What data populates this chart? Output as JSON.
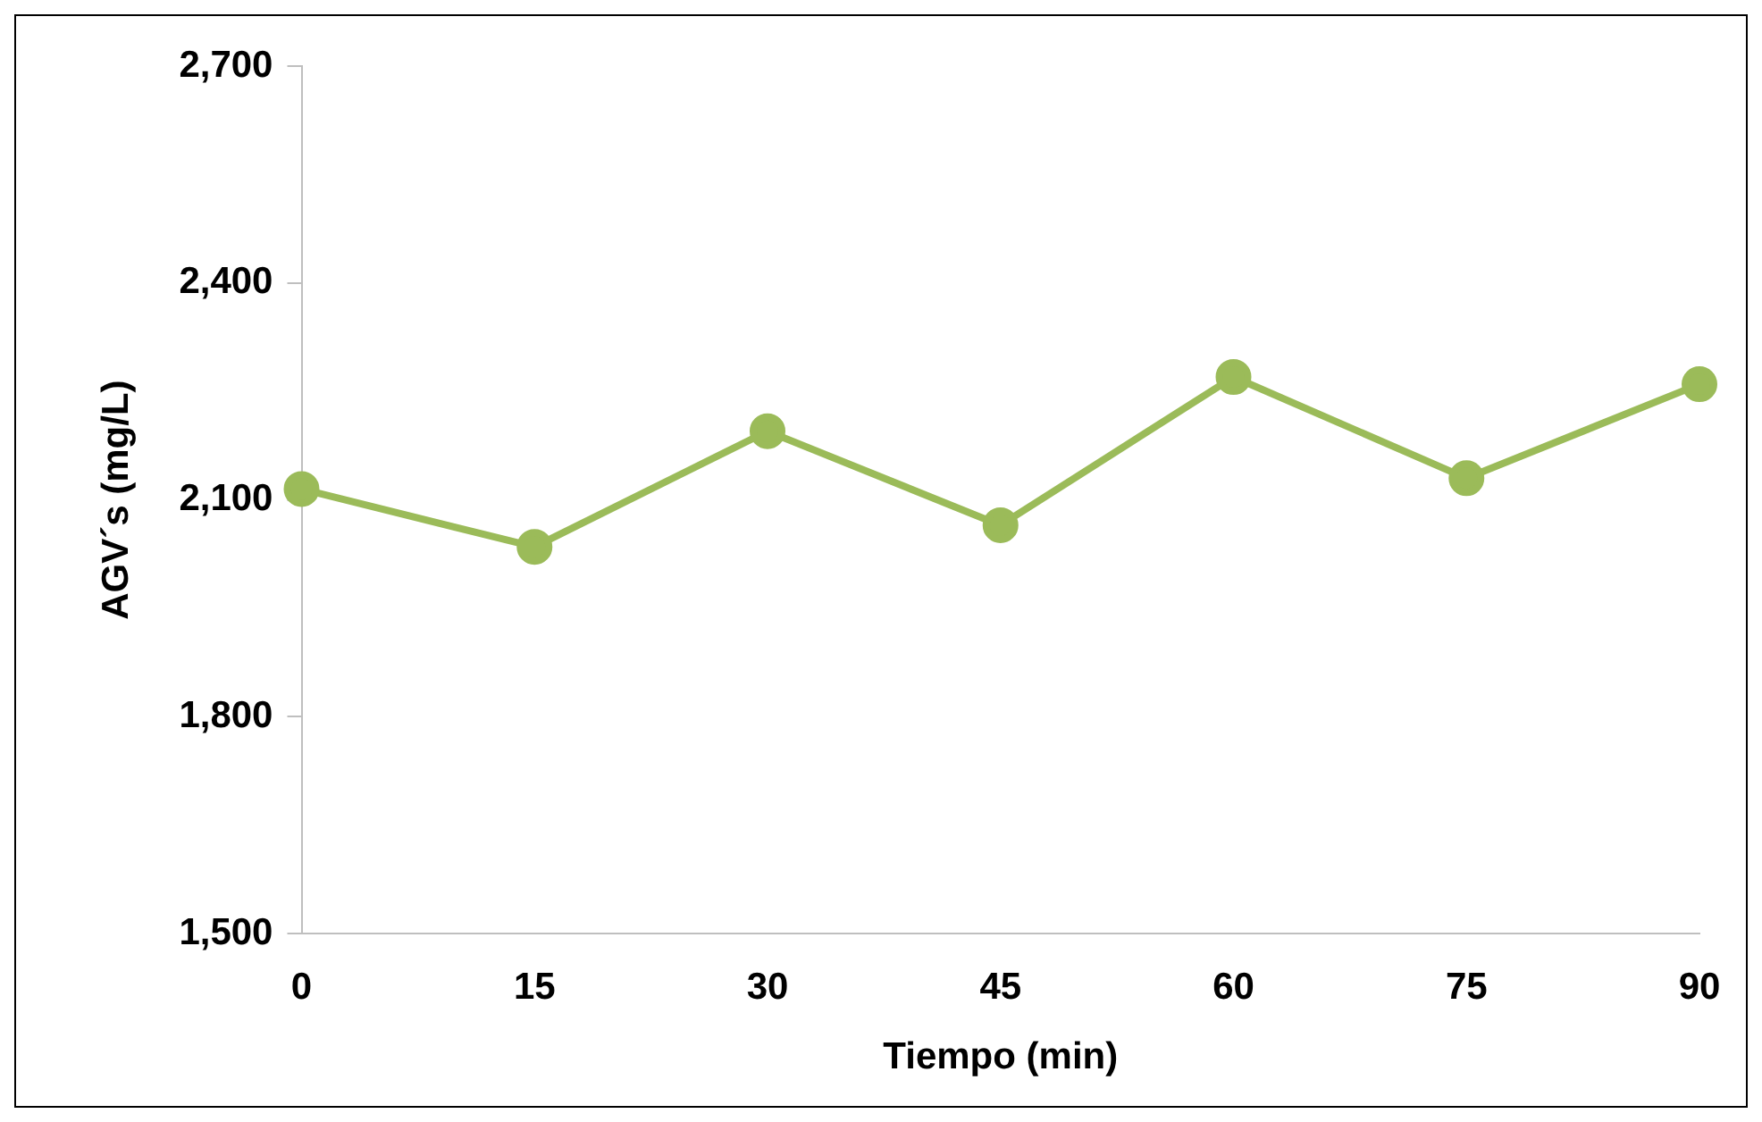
{
  "chart_data": {
    "type": "line",
    "xlabel": "Tiempo (min)",
    "ylabel": "AGV´s (mg/L)",
    "x": [
      0,
      15,
      30,
      45,
      60,
      75,
      90
    ],
    "series": [
      {
        "color": "#9bbb59",
        "values": [
          2115,
          2035,
          2195,
          2065,
          2270,
          2130,
          2260
        ]
      }
    ],
    "xlim": [
      0,
      90
    ],
    "xticks": [
      0,
      15,
      30,
      45,
      60,
      75,
      90
    ],
    "ylim": [
      1500,
      2700
    ],
    "yticks": [
      {
        "value": 1500,
        "label": "1,500"
      },
      {
        "value": 1800,
        "label": "1,800"
      },
      {
        "value": 2100,
        "label": "2,100"
      },
      {
        "value": 2400,
        "label": "2,400"
      },
      {
        "value": 2700,
        "label": "2,700"
      }
    ],
    "grid": false,
    "legend": false,
    "marker": "circle",
    "line_style": "solid"
  }
}
